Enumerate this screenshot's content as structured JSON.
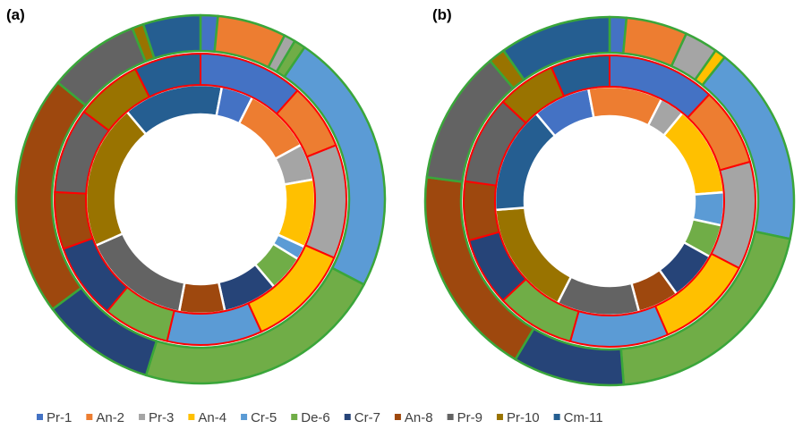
{
  "chart_data": {
    "type": "pie",
    "variant": "multi-ring donut (sunburst)",
    "legend_position": "bottom",
    "categories": [
      "Pr-1",
      "An-2",
      "Pr-3",
      "An-4",
      "Cr-5",
      "De-6",
      "Cr-7",
      "An-8",
      "Pr-9",
      "Pr-10",
      "Cm-11"
    ],
    "colors": {
      "Pr-1": "#4472C4",
      "An-2": "#ED7D31",
      "Pr-3": "#A5A5A5",
      "An-4": "#FFC000",
      "Cr-5": "#5B9BD5",
      "De-6": "#70AD47",
      "Cr-7": "#264478",
      "An-8": "#9E480E",
      "Pr-9": "#636363",
      "Pr-10": "#997300",
      "Cm-11": "#255E91"
    },
    "panels": [
      {
        "label": "(a)",
        "inner_ring": [
          {
            "category": "Cm-11",
            "value": 11
          },
          {
            "category": "Pr-1",
            "value": 3.5
          },
          {
            "category": "An-2",
            "value": 7.5
          },
          {
            "category": "Pr-3",
            "value": 4
          },
          {
            "category": "An-4",
            "value": 7.5
          },
          {
            "category": "Cr-5",
            "value": 1.5
          },
          {
            "category": "De-6",
            "value": 4
          },
          {
            "category": "Cr-7",
            "value": 6
          },
          {
            "category": "An-8",
            "value": 5
          },
          {
            "category": "Pr-9",
            "value": 12
          },
          {
            "category": "Pr-10",
            "value": 16
          }
        ],
        "middle_ring": [
          {
            "category": "Pr-1",
            "value": 11
          },
          {
            "category": "An-2",
            "value": 7
          },
          {
            "category": "Pr-3",
            "value": 12
          },
          {
            "category": "An-4",
            "value": 11
          },
          {
            "category": "Cr-5",
            "value": 10
          },
          {
            "category": "De-6",
            "value": 7
          },
          {
            "category": "Cr-7",
            "value": 8
          },
          {
            "category": "An-8",
            "value": 6
          },
          {
            "category": "Pr-9",
            "value": 9
          },
          {
            "category": "Pr-10",
            "value": 7
          },
          {
            "category": "Cm-11",
            "value": 7
          }
        ],
        "outer_ring": [
          {
            "category": "Pr-1",
            "value": 1.5
          },
          {
            "category": "An-2",
            "value": 6
          },
          {
            "category": "Pr-3",
            "value": 1
          },
          {
            "category": "De-6",
            "value": 1
          },
          {
            "category": "Cr-5",
            "value": 23
          },
          {
            "category": "De-6",
            "value": 22
          },
          {
            "category": "Cr-7",
            "value": 10
          },
          {
            "category": "An-8",
            "value": 21
          },
          {
            "category": "Pr-9",
            "value": 8
          },
          {
            "category": "Pr-10",
            "value": 1
          },
          {
            "category": "Cm-11",
            "value": 5
          }
        ]
      },
      {
        "label": "(b)",
        "inner_ring": [
          {
            "category": "Pr-1",
            "value": 7
          },
          {
            "category": "An-2",
            "value": 9
          },
          {
            "category": "Pr-3",
            "value": 3
          },
          {
            "category": "An-4",
            "value": 11
          },
          {
            "category": "Cr-5",
            "value": 4
          },
          {
            "category": "De-6",
            "value": 4
          },
          {
            "category": "Cr-7",
            "value": 6
          },
          {
            "category": "An-8",
            "value": 5
          },
          {
            "category": "Pr-9",
            "value": 10
          },
          {
            "category": "Pr-10",
            "value": 14
          },
          {
            "category": "Cm-11",
            "value": 13
          }
        ],
        "middle_ring": [
          {
            "category": "Pr-1",
            "value": 11
          },
          {
            "category": "An-2",
            "value": 8
          },
          {
            "category": "Pr-3",
            "value": 11
          },
          {
            "category": "An-4",
            "value": 10
          },
          {
            "category": "Cr-5",
            "value": 10
          },
          {
            "category": "De-6",
            "value": 8
          },
          {
            "category": "Cr-7",
            "value": 7
          },
          {
            "category": "An-8",
            "value": 6
          },
          {
            "category": "Pr-9",
            "value": 9
          },
          {
            "category": "Pr-10",
            "value": 6
          },
          {
            "category": "Cm-11",
            "value": 6
          }
        ],
        "outer_ring": [
          {
            "category": "Pr-1",
            "value": 1.5
          },
          {
            "category": "An-2",
            "value": 5.5
          },
          {
            "category": "Pr-3",
            "value": 3
          },
          {
            "category": "An-4",
            "value": 1
          },
          {
            "category": "Cr-5",
            "value": 18
          },
          {
            "category": "De-6",
            "value": 21
          },
          {
            "category": "Cr-7",
            "value": 10
          },
          {
            "category": "An-8",
            "value": 19
          },
          {
            "category": "Pr-9",
            "value": 12
          },
          {
            "category": "Pr-10",
            "value": 1.5
          },
          {
            "category": "Cm-11",
            "value": 10
          }
        ]
      }
    ]
  }
}
